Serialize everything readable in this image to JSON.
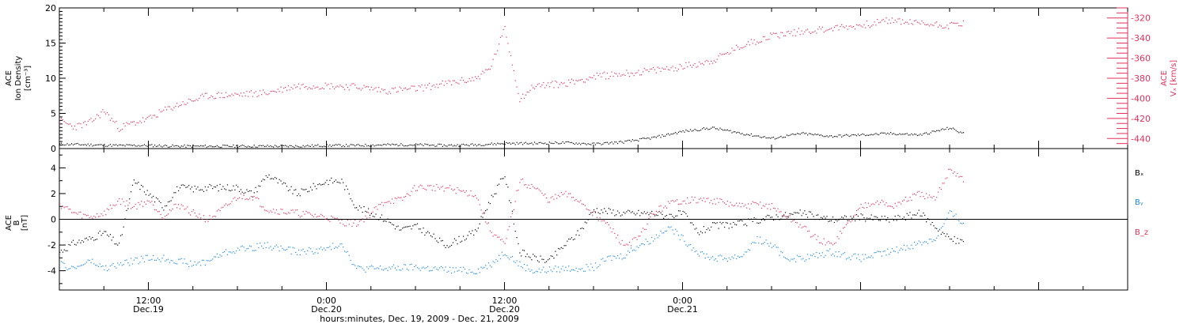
{
  "chart_data": [
    {
      "type": "scatter",
      "panel": "top",
      "ylabel": [
        "ACE",
        "Ion Density",
        "[cm⁻³]"
      ],
      "y2label": [
        "ACE",
        "Vₓ [km/s]"
      ],
      "ylim": [
        0,
        20
      ],
      "y2lim": [
        -450,
        -310
      ],
      "yticks": [
        0,
        5,
        10,
        15,
        20
      ],
      "y2ticks": [
        -440,
        -420,
        -400,
        -380,
        -360,
        -340,
        -320
      ],
      "grid": false,
      "series": [
        {
          "name": "",
          "axis": "left",
          "color": "#000000",
          "points": [
            [
              6,
              0.7
            ],
            [
              8,
              0.6
            ],
            [
              10,
              0.5
            ],
            [
              12,
              0.5
            ],
            [
              14,
              0.4
            ],
            [
              16,
              0.4
            ],
            [
              18,
              0.4
            ],
            [
              20,
              0.4
            ],
            [
              22,
              0.4
            ],
            [
              24,
              0.5
            ],
            [
              26,
              0.5
            ],
            [
              28,
              0.6
            ],
            [
              30,
              0.6
            ],
            [
              32,
              0.5
            ],
            [
              34,
              0.6
            ],
            [
              36,
              0.8
            ],
            [
              38,
              0.8
            ],
            [
              40,
              0.9
            ],
            [
              42,
              0.7
            ],
            [
              44,
              1.0
            ],
            [
              46,
              1.6
            ],
            [
              48,
              2.5
            ],
            [
              50,
              3.0
            ],
            [
              52,
              2.2
            ],
            [
              54,
              1.5
            ],
            [
              56,
              2.2
            ],
            [
              58,
              1.8
            ],
            [
              60,
              2.0
            ],
            [
              62,
              2.2
            ],
            [
              64,
              2.0
            ],
            [
              66,
              3.0
            ],
            [
              67,
              2.1
            ]
          ]
        },
        {
          "name": "",
          "axis": "right",
          "color": "#e0305a",
          "points": [
            [
              6,
              -422
            ],
            [
              7,
              -428
            ],
            [
              8,
              -424
            ],
            [
              9,
              -412
            ],
            [
              10,
              -429
            ],
            [
              11,
              -424
            ],
            [
              12,
              -420
            ],
            [
              13,
              -412
            ],
            [
              14,
              -406
            ],
            [
              16,
              -397
            ],
            [
              18,
              -396
            ],
            [
              20,
              -394
            ],
            [
              22,
              -387
            ],
            [
              24,
              -387
            ],
            [
              26,
              -388
            ],
            [
              28,
              -392
            ],
            [
              30,
              -390
            ],
            [
              32,
              -385
            ],
            [
              34,
              -380
            ],
            [
              35,
              -370
            ],
            [
              36,
              -330
            ],
            [
              37,
              -400
            ],
            [
              38,
              -387
            ],
            [
              40,
              -385
            ],
            [
              42,
              -378
            ],
            [
              44,
              -375
            ],
            [
              46,
              -372
            ],
            [
              48,
              -368
            ],
            [
              50,
              -362
            ],
            [
              52,
              -347
            ],
            [
              54,
              -337
            ],
            [
              56,
              -333
            ],
            [
              58,
              -330
            ],
            [
              60,
              -327
            ],
            [
              62,
              -322
            ],
            [
              64,
              -325
            ],
            [
              66,
              -327
            ],
            [
              67,
              -324
            ]
          ]
        }
      ]
    },
    {
      "type": "scatter",
      "panel": "bottom",
      "ylabel": [
        "ACE",
        "B",
        "[nT]"
      ],
      "ylim": [
        -5.5,
        5.5
      ],
      "yticks": [
        -4,
        -2,
        0,
        2,
        4
      ],
      "zero_line": true,
      "grid": false,
      "series": [
        {
          "name": "Bₓ",
          "color": "#000000",
          "points": [
            [
              6,
              -2.5
            ],
            [
              7,
              -1.8
            ],
            [
              8,
              -1.5
            ],
            [
              9,
              -1.0
            ],
            [
              10,
              -2.0
            ],
            [
              11,
              3.0
            ],
            [
              12,
              2.0
            ],
            [
              13,
              1.0
            ],
            [
              14,
              2.5
            ],
            [
              15,
              2.4
            ],
            [
              16,
              2.5
            ],
            [
              18,
              2.5
            ],
            [
              19,
              2.0
            ],
            [
              20,
              3.5
            ],
            [
              22,
              2.0
            ],
            [
              24,
              3.0
            ],
            [
              25,
              3.0
            ],
            [
              26,
              1.0
            ],
            [
              27,
              0.5
            ],
            [
              28,
              0.0
            ],
            [
              29,
              -0.8
            ],
            [
              30,
              -0.5
            ],
            [
              31,
              -1.2
            ],
            [
              32,
              -2.0
            ],
            [
              33,
              -1.5
            ],
            [
              34,
              -1.0
            ],
            [
              35,
              1.5
            ],
            [
              36,
              3.5
            ],
            [
              37,
              -2.5
            ],
            [
              38,
              -3.0
            ],
            [
              39,
              -3.2
            ],
            [
              40,
              -2.0
            ],
            [
              41,
              -1.0
            ],
            [
              42,
              0.8
            ],
            [
              44,
              0.5
            ],
            [
              46,
              0.5
            ],
            [
              47,
              0.3
            ],
            [
              48,
              0.5
            ],
            [
              49,
              -1.0
            ],
            [
              50,
              -0.5
            ],
            [
              52,
              -0.3
            ],
            [
              54,
              0.2
            ],
            [
              56,
              0.5
            ],
            [
              58,
              0.0
            ],
            [
              60,
              0.2
            ],
            [
              62,
              0.0
            ],
            [
              64,
              0.5
            ],
            [
              66,
              -1.5
            ],
            [
              67,
              -1.8
            ]
          ]
        },
        {
          "name": "Bᵧ",
          "color": "#1a8ae0",
          "points": [
            [
              6,
              -3.5
            ],
            [
              7,
              -3.8
            ],
            [
              8,
              -3.2
            ],
            [
              9,
              -3.8
            ],
            [
              10,
              -3.5
            ],
            [
              11,
              -3.2
            ],
            [
              12,
              -3.0
            ],
            [
              13,
              -3.0
            ],
            [
              14,
              -3.2
            ],
            [
              15,
              -3.5
            ],
            [
              16,
              -3.2
            ],
            [
              17,
              -2.6
            ],
            [
              18,
              -2.3
            ],
            [
              20,
              -2.0
            ],
            [
              22,
              -2.5
            ],
            [
              24,
              -2.3
            ],
            [
              25,
              -1.8
            ],
            [
              26,
              -3.8
            ],
            [
              28,
              -3.8
            ],
            [
              30,
              -3.7
            ],
            [
              32,
              -3.9
            ],
            [
              34,
              -4.0
            ],
            [
              35,
              -3.5
            ],
            [
              36,
              -2.5
            ],
            [
              37,
              -3.5
            ],
            [
              38,
              -4.0
            ],
            [
              40,
              -3.8
            ],
            [
              42,
              -3.7
            ],
            [
              43,
              -3.0
            ],
            [
              44,
              -2.8
            ],
            [
              45,
              -2.0
            ],
            [
              46,
              -1.5
            ],
            [
              47,
              -0.5
            ],
            [
              48,
              -1.5
            ],
            [
              49,
              -2.5
            ],
            [
              50,
              -3.0
            ],
            [
              51,
              -3.0
            ],
            [
              52,
              -2.8
            ],
            [
              53,
              -1.5
            ],
            [
              54,
              -2.0
            ],
            [
              55,
              -3.0
            ],
            [
              56,
              -3.0
            ],
            [
              57,
              -2.8
            ],
            [
              58,
              -2.5
            ],
            [
              59,
              -2.8
            ],
            [
              60,
              -3.0
            ],
            [
              62,
              -2.5
            ],
            [
              64,
              -1.8
            ],
            [
              65,
              -1.5
            ],
            [
              66,
              0.5
            ],
            [
              67,
              -0.3
            ]
          ]
        },
        {
          "name": "B_z",
          "color": "#e0305a",
          "points": [
            [
              6,
              1.2
            ],
            [
              7,
              0.5
            ],
            [
              8,
              0.2
            ],
            [
              9,
              0.5
            ],
            [
              10,
              1.5
            ],
            [
              11,
              1.0
            ],
            [
              12,
              1.5
            ],
            [
              13,
              0.3
            ],
            [
              14,
              1.2
            ],
            [
              15,
              0.5
            ],
            [
              16,
              0.0
            ],
            [
              17,
              0.8
            ],
            [
              18,
              1.8
            ],
            [
              19,
              1.8
            ],
            [
              20,
              0.8
            ],
            [
              22,
              0.5
            ],
            [
              24,
              0.2
            ],
            [
              25,
              -0.2
            ],
            [
              26,
              -0.3
            ],
            [
              27,
              0.5
            ],
            [
              28,
              1.5
            ],
            [
              29,
              1.5
            ],
            [
              30,
              2.5
            ],
            [
              32,
              2.5
            ],
            [
              33,
              2.2
            ],
            [
              34,
              2.0
            ],
            [
              35,
              -0.8
            ],
            [
              36,
              -2.0
            ],
            [
              37,
              3.0
            ],
            [
              38,
              2.5
            ],
            [
              39,
              1.5
            ],
            [
              40,
              2.0
            ],
            [
              41,
              1.5
            ],
            [
              42,
              0.5
            ],
            [
              43,
              -0.5
            ],
            [
              44,
              -2.0
            ],
            [
              45,
              -1.5
            ],
            [
              46,
              0.5
            ],
            [
              47,
              1.2
            ],
            [
              48,
              1.5
            ],
            [
              50,
              1.5
            ],
            [
              52,
              1.0
            ],
            [
              53,
              1.2
            ],
            [
              54,
              1.0
            ],
            [
              55,
              0.2
            ],
            [
              56,
              -0.5
            ],
            [
              57,
              -1.5
            ],
            [
              58,
              -2.0
            ],
            [
              59,
              -0.5
            ],
            [
              60,
              1.0
            ],
            [
              61,
              1.5
            ],
            [
              62,
              1.0
            ],
            [
              64,
              2.0
            ],
            [
              65,
              1.5
            ],
            [
              66,
              4.0
            ],
            [
              67,
              3.0
            ]
          ]
        }
      ]
    }
  ],
  "x_axis": {
    "range_hours": [
      6,
      78
    ],
    "major_ticks": [
      {
        "hour": 12,
        "time": "12:00",
        "date": "Dec.19"
      },
      {
        "hour": 24,
        "time": "0:00",
        "date": "Dec.20"
      },
      {
        "hour": 36,
        "time": "12:00",
        "date": "Dec.20"
      },
      {
        "hour": 48,
        "time": "0:00",
        "date": "Dec.21"
      }
    ],
    "xlabel": "hours:minutes, Dec. 19, 2009 - Dec. 21, 2009"
  },
  "legend": [
    "Bₓ",
    "Bᵧ",
    "B_z"
  ]
}
